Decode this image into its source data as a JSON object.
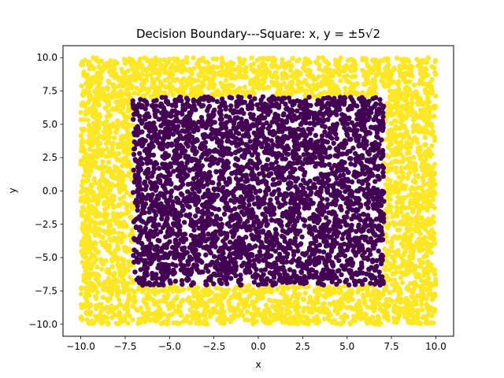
{
  "chart_data": {
    "type": "scatter",
    "title": "Decision Boundary---Square: x, y = ±5√2",
    "xlabel": "x",
    "ylabel": "y",
    "xlim": [
      -11.0,
      11.0
    ],
    "ylim": [
      -10.9,
      10.9
    ],
    "x_ticks": [
      -10.0,
      -7.5,
      -5.0,
      -2.5,
      0.0,
      2.5,
      5.0,
      7.5,
      10.0
    ],
    "x_tick_labels": [
      "−10.0",
      "−7.5",
      "−5.0",
      "−2.5",
      "0.0",
      "2.5",
      "5.0",
      "7.5",
      "10.0"
    ],
    "y_ticks": [
      -10.0,
      -7.5,
      -5.0,
      -2.5,
      0.0,
      2.5,
      5.0,
      7.5,
      10.0
    ],
    "y_tick_labels": [
      "−10.0",
      "−7.5",
      "−5.0",
      "−2.5",
      "0.0",
      "2.5",
      "5.0",
      "7.5",
      "10.0"
    ],
    "decision_boundary": 7.0710678,
    "sample_range": [
      -10.0,
      10.0
    ],
    "grid": false,
    "series": [
      {
        "class": "outside",
        "color": "#fde725"
      },
      {
        "class": "inside",
        "color": "#440154"
      }
    ],
    "colors": {
      "outside": "#fde725",
      "inside": "#440154"
    }
  }
}
